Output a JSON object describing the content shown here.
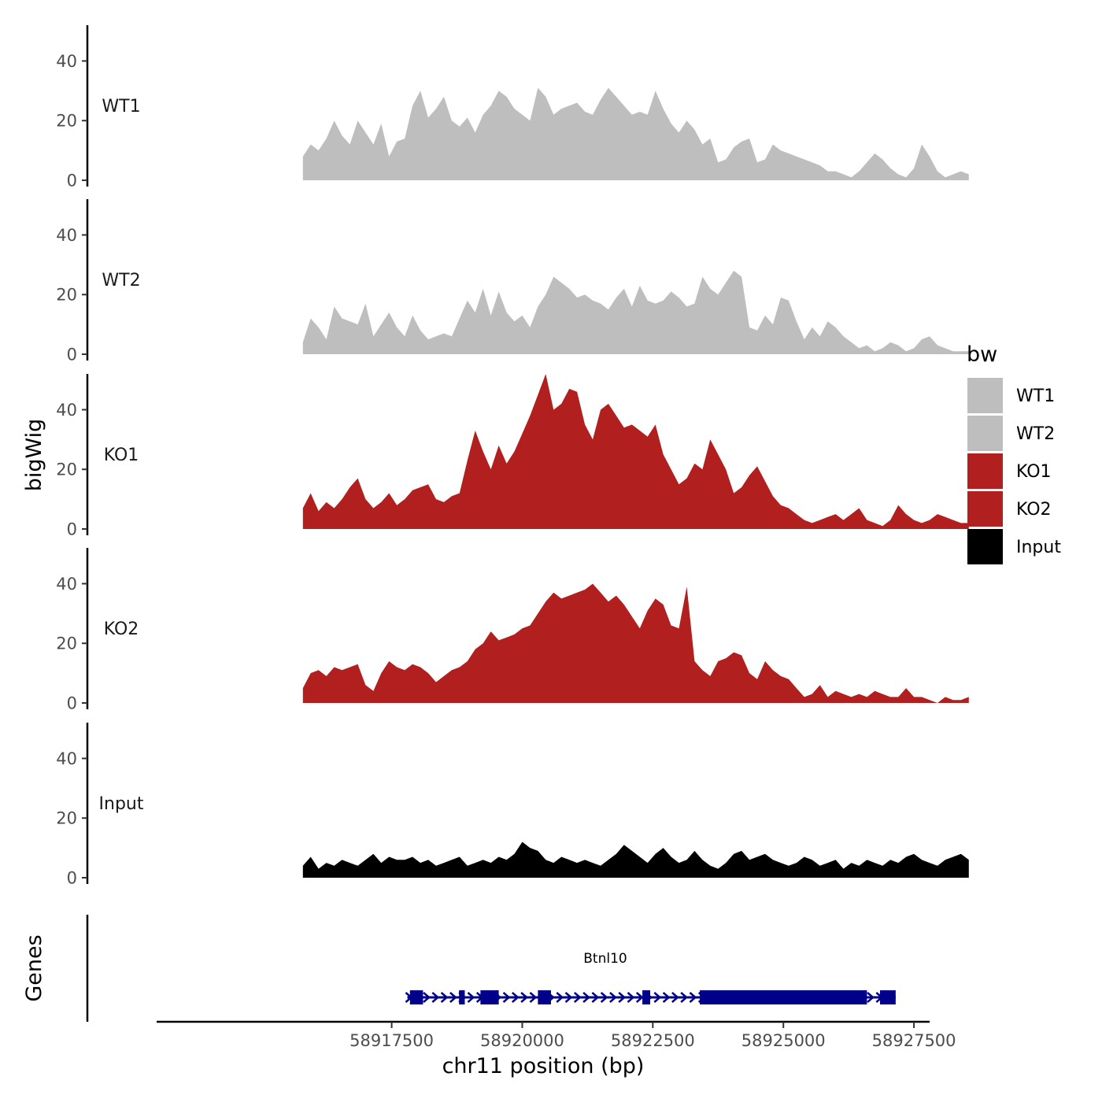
{
  "chart_data": {
    "type": "area",
    "title": "",
    "ylabel": "bigWig",
    "xlabel": "chr11 position (bp)",
    "genes_label": "Genes",
    "ylim": [
      0,
      52
    ],
    "y_ticks": [
      0,
      20,
      40
    ],
    "y_tick_labels": [
      "0",
      "20",
      "40"
    ],
    "xlim": [
      58913000,
      58927800
    ],
    "x_ticks": [
      58917500,
      58920000,
      58922500,
      58925000,
      58927500
    ],
    "x_tick_labels": [
      "58917500",
      "58920000",
      "58922500",
      "58925000",
      "58927500"
    ],
    "x_start": 58915800,
    "x_step": 150,
    "legend": {
      "title": "bw",
      "position": "right",
      "entries": [
        {
          "label": "WT1",
          "color": "#bebebe"
        },
        {
          "label": "WT2",
          "color": "#bebebe"
        },
        {
          "label": "KO1",
          "color": "#b21f1f"
        },
        {
          "label": "KO2",
          "color": "#b21f1f"
        },
        {
          "label": "Input",
          "color": "#000000"
        }
      ]
    },
    "series": [
      {
        "name": "WT1",
        "color": "#bebebe",
        "values": [
          8,
          12,
          10,
          14,
          20,
          15,
          12,
          20,
          16,
          12,
          19,
          8,
          13,
          14,
          25,
          30,
          21,
          24,
          28,
          20,
          18,
          21,
          16,
          22,
          25,
          30,
          28,
          24,
          22,
          20,
          31,
          28,
          22,
          24,
          25,
          26,
          23,
          22,
          27,
          31,
          28,
          25,
          22,
          23,
          22,
          30,
          24,
          19,
          16,
          20,
          17,
          12,
          14,
          6,
          7,
          11,
          13,
          14,
          6,
          7,
          12,
          10,
          9,
          8,
          7,
          6,
          5,
          3,
          3,
          2,
          1,
          3,
          6,
          9,
          7,
          4,
          2,
          1,
          4,
          12,
          8,
          3,
          1,
          2,
          3,
          2
        ]
      },
      {
        "name": "WT2",
        "color": "#bebebe",
        "values": [
          4,
          12,
          9,
          5,
          16,
          12,
          11,
          10,
          17,
          6,
          10,
          14,
          9,
          6,
          13,
          8,
          5,
          6,
          7,
          6,
          12,
          18,
          14,
          22,
          13,
          21,
          14,
          11,
          13,
          9,
          16,
          20,
          26,
          24,
          22,
          19,
          20,
          18,
          17,
          15,
          19,
          22,
          16,
          23,
          18,
          17,
          18,
          21,
          19,
          16,
          17,
          26,
          22,
          20,
          24,
          28,
          26,
          9,
          8,
          13,
          10,
          19,
          18,
          11,
          5,
          9,
          6,
          11,
          9,
          6,
          4,
          2,
          3,
          1,
          2,
          4,
          3,
          1,
          2,
          5,
          6,
          3,
          2,
          1,
          1,
          1
        ]
      },
      {
        "name": "KO1",
        "color": "#b21f1f",
        "values": [
          7,
          12,
          6,
          9,
          7,
          10,
          14,
          17,
          10,
          7,
          9,
          12,
          8,
          10,
          13,
          14,
          15,
          10,
          9,
          11,
          12,
          23,
          33,
          26,
          20,
          28,
          22,
          26,
          32,
          38,
          45,
          52,
          40,
          42,
          47,
          46,
          35,
          30,
          40,
          42,
          38,
          34,
          35,
          33,
          31,
          35,
          25,
          20,
          15,
          17,
          22,
          20,
          30,
          25,
          20,
          12,
          14,
          18,
          21,
          16,
          11,
          8,
          7,
          5,
          3,
          2,
          3,
          4,
          5,
          3,
          5,
          7,
          3,
          2,
          1,
          3,
          8,
          5,
          3,
          2,
          3,
          5,
          4,
          3,
          2,
          2
        ]
      },
      {
        "name": "KO2",
        "color": "#b21f1f",
        "values": [
          5,
          10,
          11,
          9,
          12,
          11,
          12,
          13,
          6,
          4,
          10,
          14,
          12,
          11,
          13,
          12,
          10,
          7,
          9,
          11,
          12,
          14,
          18,
          20,
          24,
          21,
          22,
          23,
          25,
          26,
          30,
          34,
          37,
          35,
          36,
          37,
          38,
          40,
          37,
          34,
          36,
          33,
          29,
          25,
          31,
          35,
          33,
          26,
          25,
          39,
          14,
          11,
          9,
          14,
          15,
          17,
          16,
          10,
          8,
          14,
          11,
          9,
          8,
          5,
          2,
          3,
          6,
          2,
          4,
          3,
          2,
          3,
          2,
          4,
          3,
          2,
          2,
          5,
          2,
          2,
          1,
          0,
          2,
          1,
          1,
          2
        ]
      },
      {
        "name": "Input",
        "color": "#000000",
        "values": [
          4,
          7,
          3,
          5,
          4,
          6,
          5,
          4,
          6,
          8,
          5,
          7,
          6,
          6,
          7,
          5,
          6,
          4,
          5,
          6,
          7,
          4,
          5,
          6,
          5,
          7,
          6,
          8,
          12,
          10,
          9,
          6,
          5,
          7,
          6,
          5,
          6,
          5,
          4,
          6,
          8,
          11,
          9,
          7,
          5,
          8,
          10,
          7,
          5,
          6,
          9,
          6,
          4,
          3,
          5,
          8,
          9,
          6,
          7,
          8,
          6,
          5,
          4,
          5,
          7,
          6,
          4,
          5,
          6,
          3,
          5,
          4,
          6,
          5,
          4,
          6,
          5,
          7,
          8,
          6,
          5,
          4,
          6,
          7,
          8,
          6
        ]
      }
    ],
    "gene": {
      "name": "Btnl10",
      "strand": "+",
      "color": "#00008b",
      "start": 58917800,
      "end": 58927150,
      "exons": [
        [
          58917850,
          58918100
        ],
        [
          58918790,
          58918900
        ],
        [
          58919200,
          58919550
        ],
        [
          58920300,
          58920550
        ],
        [
          58922300,
          58922450
        ],
        [
          58923400,
          58926600
        ],
        [
          58926850,
          58927150
        ]
      ]
    }
  }
}
